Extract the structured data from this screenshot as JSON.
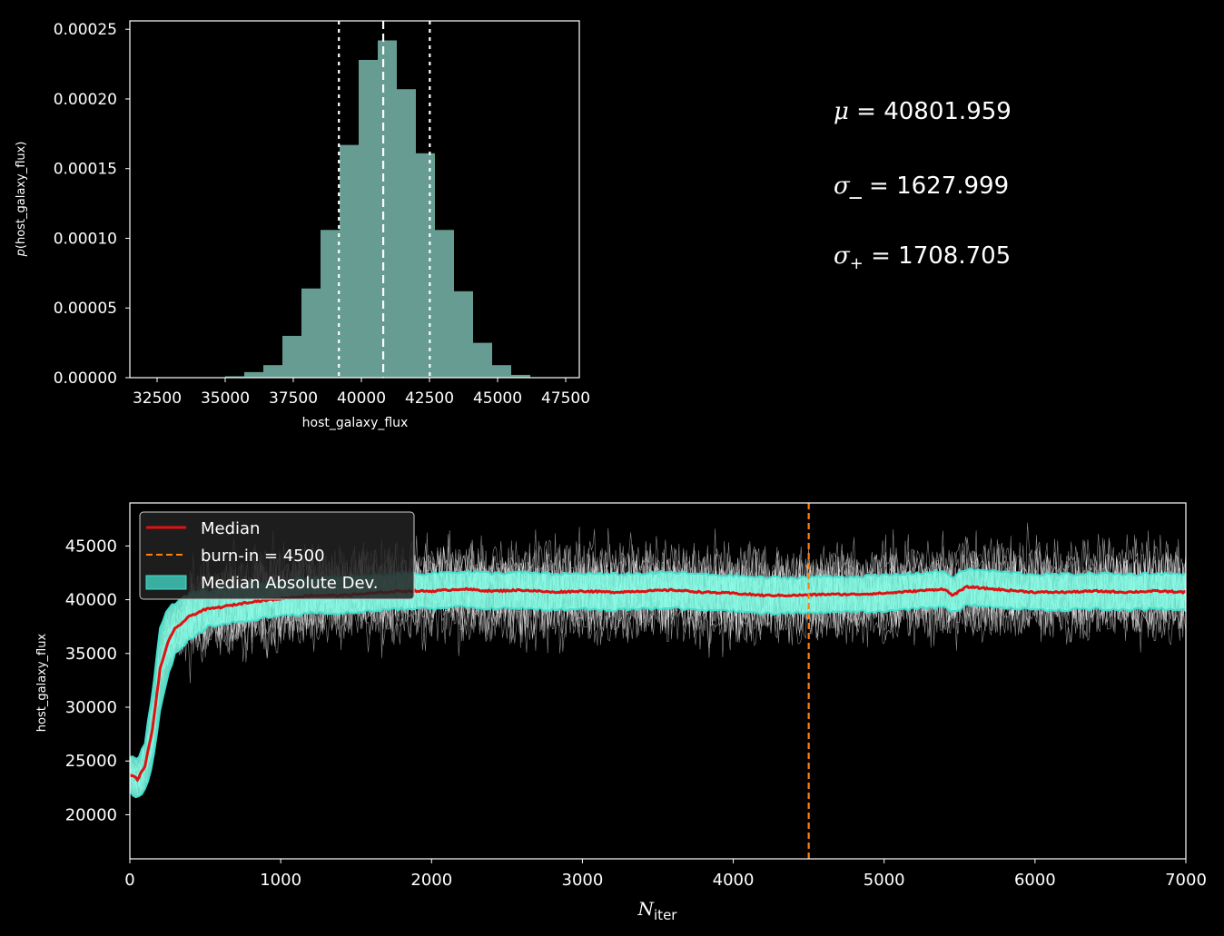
{
  "chart_data": [
    {
      "type": "bar",
      "subtype": "histogram",
      "xlabel": "host_galaxy_flux",
      "ylabel_text": "host_galaxy_flux",
      "xlim": [
        31500,
        48000
      ],
      "ylim": [
        0,
        0.000256
      ],
      "xticks": [
        "32500",
        "35000",
        "37500",
        "40000",
        "42500",
        "45000",
        "47500"
      ],
      "xtick_values": [
        32500,
        35000,
        37500,
        40000,
        42500,
        45000,
        47500
      ],
      "yticks": [
        "0.00000",
        "0.00005",
        "0.00010",
        "0.00015",
        "0.00020",
        "0.00025"
      ],
      "ytick_values": [
        0,
        5e-05,
        0.0001,
        0.00015,
        0.0002,
        0.00025
      ],
      "bins": [
        {
          "x0": 35000,
          "x1": 35700,
          "value": 1e-06
        },
        {
          "x0": 35700,
          "x1": 36400,
          "value": 4e-06
        },
        {
          "x0": 36400,
          "x1": 37100,
          "value": 9e-06
        },
        {
          "x0": 37100,
          "x1": 37800,
          "value": 3e-05
        },
        {
          "x0": 37800,
          "x1": 38500,
          "value": 6.4e-05
        },
        {
          "x0": 38500,
          "x1": 39200,
          "value": 0.000106
        },
        {
          "x0": 39200,
          "x1": 39900,
          "value": 0.000167
        },
        {
          "x0": 39900,
          "x1": 40600,
          "value": 0.000228
        },
        {
          "x0": 40600,
          "x1": 41300,
          "value": 0.000242
        },
        {
          "x0": 41300,
          "x1": 42000,
          "value": 0.000207
        },
        {
          "x0": 42000,
          "x1": 42700,
          "value": 0.000161
        },
        {
          "x0": 42700,
          "x1": 43400,
          "value": 0.000106
        },
        {
          "x0": 43400,
          "x1": 44100,
          "value": 6.2e-05
        },
        {
          "x0": 44100,
          "x1": 44800,
          "value": 2.5e-05
        },
        {
          "x0": 44800,
          "x1": 45500,
          "value": 9e-06
        },
        {
          "x0": 45500,
          "x1": 46200,
          "value": 2e-06
        }
      ],
      "median": 40801.959,
      "lower": 39173.96,
      "upper": 42510.664,
      "bar_color": "#669c91"
    },
    {
      "type": "line",
      "xlabel": "N",
      "xlabel_sub": "iter",
      "ylabel": "host_galaxy_flux",
      "xlim": [
        0,
        7000
      ],
      "ylim": [
        15900,
        49000
      ],
      "xticks": [
        "0",
        "1000",
        "2000",
        "3000",
        "4000",
        "5000",
        "6000",
        "7000"
      ],
      "xtick_values": [
        0,
        1000,
        2000,
        3000,
        4000,
        5000,
        6000,
        7000
      ],
      "yticks": [
        "20000",
        "25000",
        "30000",
        "35000",
        "40000",
        "45000"
      ],
      "ytick_values": [
        20000,
        25000,
        30000,
        35000,
        40000,
        45000
      ],
      "burn_in": 4500,
      "median_series": [
        [
          0,
          23800
        ],
        [
          50,
          23300
        ],
        [
          100,
          24500
        ],
        [
          150,
          28000
        ],
        [
          200,
          33500
        ],
        [
          250,
          36000
        ],
        [
          300,
          37300
        ],
        [
          400,
          38500
        ],
        [
          500,
          39100
        ],
        [
          600,
          39300
        ],
        [
          800,
          39800
        ],
        [
          1000,
          40100
        ],
        [
          1200,
          40400
        ],
        [
          1400,
          40400
        ],
        [
          1600,
          40600
        ],
        [
          1800,
          40800
        ],
        [
          2000,
          40800
        ],
        [
          2200,
          41000
        ],
        [
          2400,
          40800
        ],
        [
          2600,
          40900
        ],
        [
          2800,
          40700
        ],
        [
          3000,
          40800
        ],
        [
          3200,
          40700
        ],
        [
          3400,
          40800
        ],
        [
          3600,
          40900
        ],
        [
          3800,
          40700
        ],
        [
          4000,
          40600
        ],
        [
          4200,
          40400
        ],
        [
          4400,
          40400
        ],
        [
          4600,
          40500
        ],
        [
          4800,
          40500
        ],
        [
          5000,
          40600
        ],
        [
          5200,
          40800
        ],
        [
          5400,
          41000
        ],
        [
          5450,
          40400
        ],
        [
          5550,
          41200
        ],
        [
          5800,
          40900
        ],
        [
          6000,
          40700
        ],
        [
          6200,
          40700
        ],
        [
          6400,
          40800
        ],
        [
          6600,
          40700
        ],
        [
          6800,
          40800
        ],
        [
          7000,
          40700
        ]
      ],
      "mad": 1650,
      "mad_early": [
        [
          0,
          1600
        ],
        [
          100,
          2200
        ],
        [
          150,
          3500
        ],
        [
          200,
          3800
        ],
        [
          300,
          2400
        ],
        [
          500,
          1900
        ]
      ],
      "walker_spread": 4300,
      "colors": {
        "median": "#e01111",
        "burn_in": "#ff7f0e",
        "band": "#7fffe6",
        "band_edge": "#40e0d0",
        "walkers": "#ffffff"
      }
    }
  ],
  "legend": {
    "median": "Median",
    "burn_in": "burn-in = 4500",
    "mad": "Median Absolute Dev."
  },
  "stats": {
    "mu_symbol": "μ",
    "mu_value": " = 40801.959",
    "sigma_minus_symbol": "σ",
    "sigma_minus_sub": "_",
    "sigma_minus_value": " = 1627.999",
    "sigma_plus_symbol": "σ",
    "sigma_plus_sub": "+",
    "sigma_plus_value": " = 1708.705"
  }
}
